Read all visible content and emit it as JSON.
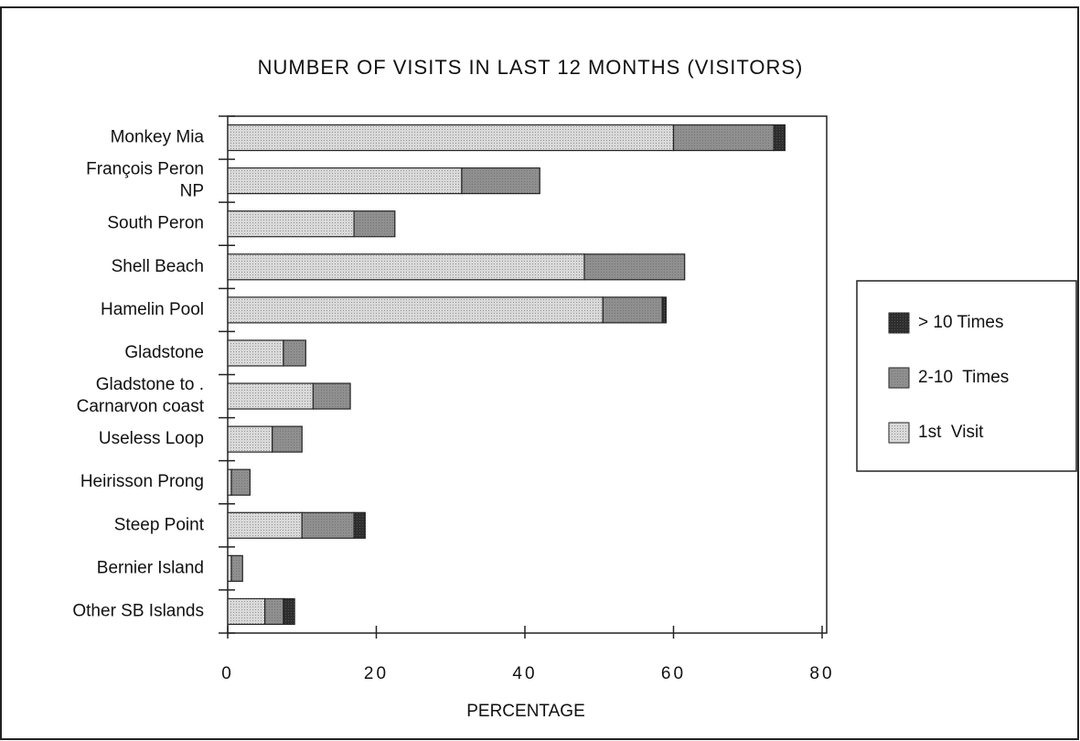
{
  "chart_data": {
    "type": "stacked_bar_horizontal",
    "title": "NUMBER OF VISITS IN LAST 12 MONTHS (VISITORS)",
    "x_label": "PERCENTAGE",
    "categories": [
      "Monkey Mia",
      "François Peron\nNP",
      "South Peron",
      "Shell Beach",
      "Hamelin Pool",
      "Gladstone",
      "Gladstone to .\nCarnarvon coast",
      "Useless Loop",
      "Heirisson Prong",
      "Steep Point",
      "Bernier Island",
      "Other SB Islands"
    ],
    "series": [
      {
        "name": "1st  Visit",
        "color": "#d9d9d9",
        "values": [
          60,
          31.5,
          17,
          48,
          50.5,
          7.5,
          11.5,
          6,
          0.5,
          10,
          0.5,
          5
        ]
      },
      {
        "name": "2-10  Times",
        "color": "#8f8f8f",
        "values": [
          13.5,
          10.5,
          5.5,
          13.5,
          8,
          3,
          5,
          4,
          2.5,
          7,
          1.5,
          2.5
        ]
      },
      {
        "name": "> 10 Times",
        "color": "#2e2e2e",
        "values": [
          1.5,
          0,
          0,
          0,
          0.5,
          0,
          0,
          0,
          0,
          1.5,
          0,
          1.5
        ]
      }
    ],
    "xlim": [
      0,
      80
    ],
    "xticks": [
      0,
      20,
      40,
      60,
      80
    ]
  }
}
